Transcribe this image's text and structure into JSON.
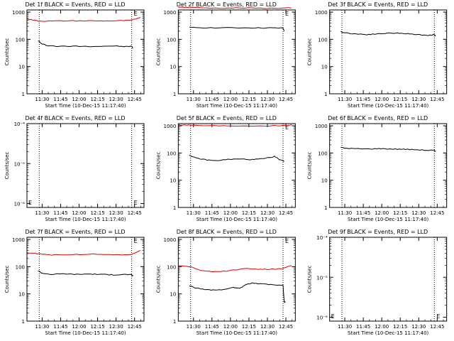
{
  "figure": {
    "colors": {
      "events": "#000000",
      "lld": "#e00000",
      "axis": "#000000"
    }
  },
  "chart_data": [
    {
      "type": "line",
      "title": "Det 1f BLACK = Events, RED = LLD",
      "xlabel": "Start Time (10-Dec-15 11:17:40)",
      "ylabel": "Counts/sec",
      "y_scale": "log",
      "ylim": [
        1,
        1200
      ],
      "y_ticks": [
        "1",
        "10",
        "100",
        "1000"
      ],
      "x_ticks": [
        "11:30",
        "11:45",
        "12:00",
        "12:15",
        "12:30",
        "12:45"
      ],
      "x_domain_minutes": [
        0,
        95
      ],
      "vlines_minutes": [
        10,
        85
      ],
      "marker": "E",
      "series": [
        {
          "name": "BLACK = Events",
          "color": "#000000",
          "x": [
            9,
            12,
            16,
            25,
            40,
            55,
            70,
            80,
            85,
            86
          ],
          "values": [
            90,
            68,
            60,
            55,
            56,
            55,
            57,
            54,
            56,
            47
          ]
        },
        {
          "name": "RED = LLD",
          "color": "#e00000",
          "x": [
            0,
            5,
            9,
            20,
            40,
            60,
            75,
            85,
            92
          ],
          "values": [
            550,
            520,
            470,
            470,
            480,
            475,
            480,
            500,
            650
          ]
        }
      ]
    },
    {
      "type": "line",
      "title": "Det 2f BLACK = Events, RED = LLD",
      "xlabel": "Start Time (10-Dec-15 11:17:40)",
      "ylabel": "Counts/sec",
      "y_scale": "log",
      "ylim": [
        1,
        1200
      ],
      "y_ticks": [
        "1",
        "10",
        "100",
        "1000"
      ],
      "x_ticks": [
        "11:30",
        "11:45",
        "12:00",
        "12:15",
        "12:30",
        "12:45"
      ],
      "x_domain_minutes": [
        0,
        95
      ],
      "vlines_minutes": [
        10,
        85
      ],
      "marker": "E",
      "series": [
        {
          "name": "BLACK = Events",
          "color": "#000000",
          "x": [
            9,
            20,
            40,
            60,
            75,
            85,
            86
          ],
          "values": [
            270,
            268,
            265,
            265,
            262,
            258,
            200
          ]
        },
        {
          "name": "RED = LLD",
          "color": "#e00000",
          "x": [
            0,
            10,
            30,
            50,
            70,
            85,
            92
          ],
          "values": [
            1500,
            1480,
            1400,
            1420,
            1390,
            1400,
            1420
          ]
        }
      ]
    },
    {
      "type": "line",
      "title": "Det 3f BLACK = Events, RED = LLD",
      "xlabel": "Start Time (10-Dec-15 11:17:40)",
      "ylabel": "Counts/sec",
      "y_scale": "log",
      "ylim": [
        1,
        1200
      ],
      "y_ticks": [
        "1",
        "10",
        "100",
        "1000"
      ],
      "x_ticks": [
        "11:30",
        "11:45",
        "12:00",
        "12:15",
        "12:30",
        "12:45"
      ],
      "x_domain_minutes": [
        0,
        95
      ],
      "vlines_minutes": [
        10,
        85
      ],
      "marker": "",
      "series": [
        {
          "name": "BLACK = Events",
          "color": "#000000",
          "x": [
            9,
            12,
            20,
            30,
            40,
            50,
            60,
            70,
            80,
            85,
            86
          ],
          "values": [
            190,
            175,
            160,
            150,
            160,
            170,
            165,
            150,
            140,
            150,
            130
          ]
        }
      ]
    },
    {
      "type": "line",
      "title": "Det 4f BLACK = Events, RED = LLD",
      "xlabel": "Start Time (10-Dec-15 11:17:40)",
      "ylabel": "Counts/sec",
      "y_scale": "log",
      "ylim": [
        8e-07,
        0.0001
      ],
      "y_ticks": [
        "10⁻⁶",
        "10⁻⁵",
        "10⁻⁴"
      ],
      "x_ticks": [
        "11:30",
        "11:45",
        "12:00",
        "12:15",
        "12:30",
        "12:45"
      ],
      "x_domain_minutes": [
        0,
        95
      ],
      "vlines_minutes": [
        10,
        85
      ],
      "marker": "E",
      "series": []
    },
    {
      "type": "line",
      "title": "Det 5f BLACK = Events, RED = LLD",
      "xlabel": "Start Time (10-Dec-15 11:17:40)",
      "ylabel": "Counts/sec",
      "y_scale": "log",
      "ylim": [
        1,
        1200
      ],
      "y_ticks": [
        "1",
        "10",
        "100",
        "1000"
      ],
      "x_ticks": [
        "11:30",
        "11:45",
        "12:00",
        "12:15",
        "12:30",
        "12:45"
      ],
      "x_domain_minutes": [
        0,
        95
      ],
      "vlines_minutes": [
        10,
        85
      ],
      "marker": "E",
      "series": [
        {
          "name": "BLACK = Events",
          "color": "#000000",
          "x": [
            9,
            12,
            20,
            30,
            40,
            50,
            60,
            70,
            78,
            82,
            86
          ],
          "values": [
            85,
            70,
            58,
            52,
            58,
            60,
            57,
            62,
            75,
            58,
            50
          ]
        },
        {
          "name": "RED = LLD",
          "color": "#e00000",
          "x": [
            0,
            10,
            30,
            50,
            70,
            85,
            92
          ],
          "values": [
            1100,
            1050,
            1000,
            1000,
            1000,
            1020,
            1100
          ]
        }
      ]
    },
    {
      "type": "line",
      "title": "Det 6f BLACK = Events, RED = LLD",
      "xlabel": "Start Time (10-Dec-15 11:17:40)",
      "ylabel": "Counts/sec",
      "y_scale": "log",
      "ylim": [
        1,
        1200
      ],
      "y_ticks": [
        "1",
        "10",
        "100",
        "1000"
      ],
      "x_ticks": [
        "11:30",
        "11:45",
        "12:00",
        "12:15",
        "12:30",
        "12:45"
      ],
      "x_domain_minutes": [
        0,
        95
      ],
      "vlines_minutes": [
        10,
        85
      ],
      "marker": "",
      "series": [
        {
          "name": "BLACK = Events",
          "color": "#000000",
          "x": [
            9,
            12,
            20,
            30,
            40,
            50,
            60,
            70,
            80,
            85,
            86
          ],
          "values": [
            165,
            150,
            145,
            140,
            145,
            140,
            138,
            132,
            125,
            125,
            115
          ]
        }
      ]
    },
    {
      "type": "line",
      "title": "Det 7f BLACK = Events, RED = LLD",
      "xlabel": "Start Time (10-Dec-15 11:17:40)",
      "ylabel": "Counts/sec",
      "y_scale": "log",
      "ylim": [
        1,
        1200
      ],
      "y_ticks": [
        "1",
        "10",
        "100",
        "1000"
      ],
      "x_ticks": [
        "11:30",
        "11:45",
        "12:00",
        "12:15",
        "12:30",
        "12:45"
      ],
      "x_domain_minutes": [
        0,
        95
      ],
      "vlines_minutes": [
        10,
        85
      ],
      "marker": "E",
      "series": [
        {
          "name": "BLACK = Events",
          "color": "#000000",
          "x": [
            9,
            12,
            20,
            30,
            40,
            50,
            60,
            70,
            80,
            85,
            86
          ],
          "values": [
            72,
            58,
            52,
            55,
            52,
            54,
            52,
            50,
            52,
            50,
            45
          ]
        },
        {
          "name": "RED = LLD",
          "color": "#e00000",
          "x": [
            0,
            8,
            20,
            40,
            60,
            75,
            85,
            92
          ],
          "values": [
            330,
            300,
            270,
            280,
            290,
            270,
            280,
            400
          ]
        }
      ]
    },
    {
      "type": "line",
      "title": "Det 8f BLACK = Events, RED = LLD",
      "xlabel": "Start Time (10-Dec-15 11:17:40)",
      "ylabel": "Counts/sec",
      "y_scale": "log",
      "ylim": [
        1,
        1200
      ],
      "y_ticks": [
        "1",
        "10",
        "100",
        "1000"
      ],
      "x_ticks": [
        "11:30",
        "11:45",
        "12:00",
        "12:15",
        "12:30",
        "12:45"
      ],
      "x_domain_minutes": [
        0,
        95
      ],
      "vlines_minutes": [
        10,
        85
      ],
      "marker": "E",
      "series": [
        {
          "name": "BLACK = Events",
          "color": "#000000",
          "x": [
            9,
            15,
            25,
            35,
            45,
            50,
            55,
            60,
            65,
            75,
            85,
            86,
            87
          ],
          "values": [
            20,
            16,
            14,
            14,
            17,
            16,
            22,
            25,
            24,
            22,
            21,
            5,
            5
          ]
        },
        {
          "name": "RED = LLD",
          "color": "#e00000",
          "x": [
            0,
            10,
            20,
            30,
            40,
            55,
            65,
            75,
            85,
            92
          ],
          "values": [
            110,
            100,
            70,
            65,
            70,
            85,
            80,
            80,
            85,
            110
          ]
        }
      ]
    },
    {
      "type": "line",
      "title": "Det 9f BLACK = Events, RED = LLD",
      "xlabel": "Start Time (10-Dec-15 11:17:40)",
      "ylabel": "Counts/sec",
      "y_scale": "log",
      "ylim": [
        8e-07,
        0.0001
      ],
      "y_ticks": [
        "10⁻⁶",
        "10⁻⁵",
        "10⁻⁴"
      ],
      "x_ticks": [
        "11:30",
        "11:45",
        "12:00",
        "12:15",
        "12:30",
        "12:45"
      ],
      "x_domain_minutes": [
        0,
        95
      ],
      "vlines_minutes": [
        10,
        85
      ],
      "marker": "E",
      "series": []
    }
  ]
}
